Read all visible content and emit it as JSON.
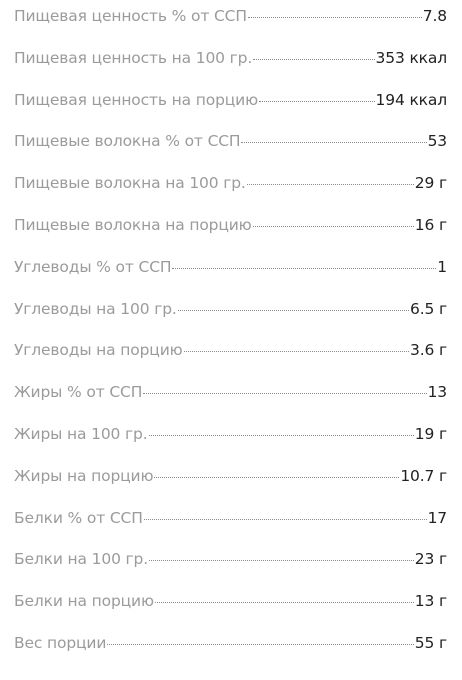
{
  "nutrition": {
    "rows": [
      {
        "label": "Пищевая ценность % от ССП",
        "value": "7.8"
      },
      {
        "label": "Пищевая ценность на 100 гр.",
        "value": "353 ккал"
      },
      {
        "label": "Пищевая ценность на порцию",
        "value": "194 ккал"
      },
      {
        "label": "Пищевые волокна % от ССП",
        "value": "53"
      },
      {
        "label": "Пищевые волокна на 100 гр.",
        "value": "29 г"
      },
      {
        "label": "Пищевые волокна на порцию",
        "value": "16 г"
      },
      {
        "label": "Углеводы % от ССП",
        "value": "1"
      },
      {
        "label": "Углеводы на 100 гр.",
        "value": "6.5 г"
      },
      {
        "label": "Углеводы на порцию",
        "value": "3.6 г"
      },
      {
        "label": "Жиры % от ССП",
        "value": "13"
      },
      {
        "label": "Жиры на 100 гр.",
        "value": "19 г"
      },
      {
        "label": "Жиры на порцию",
        "value": "10.7 г"
      },
      {
        "label": "Белки % от ССП",
        "value": "17"
      },
      {
        "label": "Белки на 100 гр.",
        "value": "23 г"
      },
      {
        "label": "Белки на порцию",
        "value": "13 г"
      },
      {
        "label": "Вес порции",
        "value": "55 г"
      }
    ]
  }
}
